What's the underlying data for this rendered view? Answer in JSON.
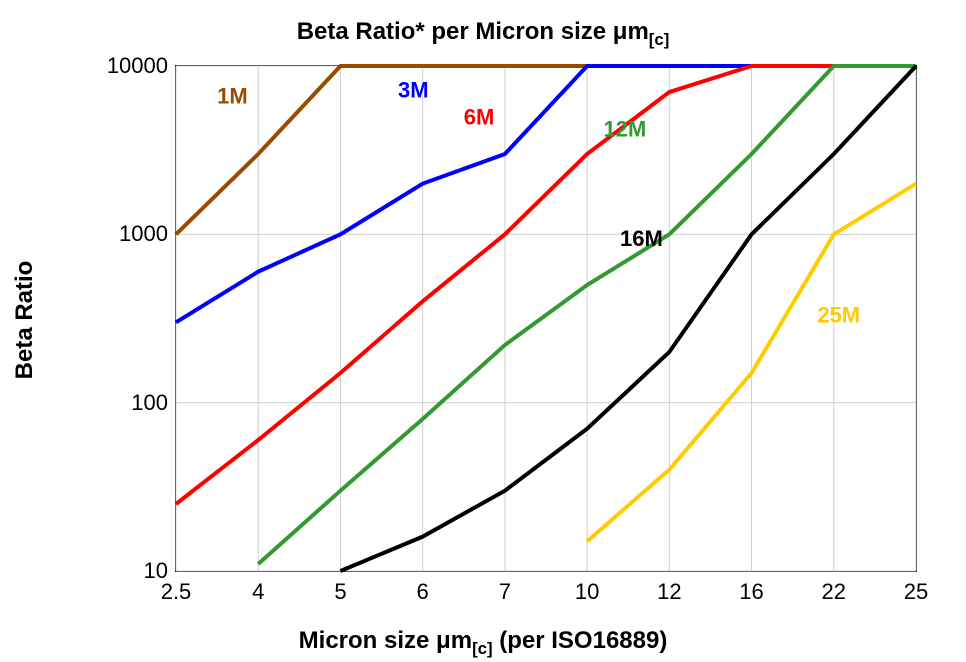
{
  "chart": {
    "type": "line",
    "title_html": "Beta Ratio* per Micron size μm<sub>[c]</sub>",
    "title_fontsize": 24,
    "xlabel_html": "Micron size μm<sub>[c]</sub> (per ISO16889)",
    "ylabel": "Beta Ratio",
    "label_fontsize": 24,
    "background_color": "#ffffff",
    "grid_color": "#d0d0d0",
    "plot_border_color": "#000000",
    "line_width": 4,
    "tick_fontsize": 22,
    "series_label_fontsize": 22,
    "x_categories": [
      "2.5",
      "4",
      "5",
      "6",
      "7",
      "10",
      "12",
      "16",
      "22",
      "25"
    ],
    "y_ticks": [
      10,
      100,
      1000,
      10000
    ],
    "y_log": true,
    "y_min": 10,
    "y_max": 10000,
    "series": [
      {
        "name": "1M",
        "color": "#994c00",
        "label_at_index": 0.5,
        "label_y": 6000,
        "values": [
          1000,
          3000,
          10000,
          10000,
          10000,
          10000,
          10000,
          10000,
          10000,
          10000
        ]
      },
      {
        "name": "3M",
        "color": "#0000ff",
        "label_at_index": 2.7,
        "label_y": 6500,
        "values": [
          300,
          600,
          1000,
          2000,
          3000,
          10000,
          10000,
          10000,
          10000,
          10000
        ]
      },
      {
        "name": "6M",
        "color": "#ff0000",
        "label_at_index": 3.5,
        "label_y": 4500,
        "values": [
          25,
          60,
          150,
          400,
          1000,
          3000,
          7000,
          10000,
          10000,
          10000
        ]
      },
      {
        "name": "12M",
        "color": "#339933",
        "label_at_index": 5.2,
        "label_y": 3800,
        "values": [
          null,
          11,
          30,
          80,
          220,
          500,
          1000,
          3000,
          10000,
          10000
        ]
      },
      {
        "name": "16M",
        "color": "#000000",
        "label_at_index": 5.4,
        "label_y": 850,
        "values": [
          null,
          null,
          10,
          16,
          30,
          70,
          200,
          1000,
          3000,
          10000
        ]
      },
      {
        "name": "25M",
        "color": "#ffcc00",
        "label_at_index": 7.8,
        "label_y": 300,
        "values": [
          null,
          null,
          null,
          null,
          null,
          15,
          40,
          150,
          1000,
          2000
        ]
      }
    ]
  }
}
